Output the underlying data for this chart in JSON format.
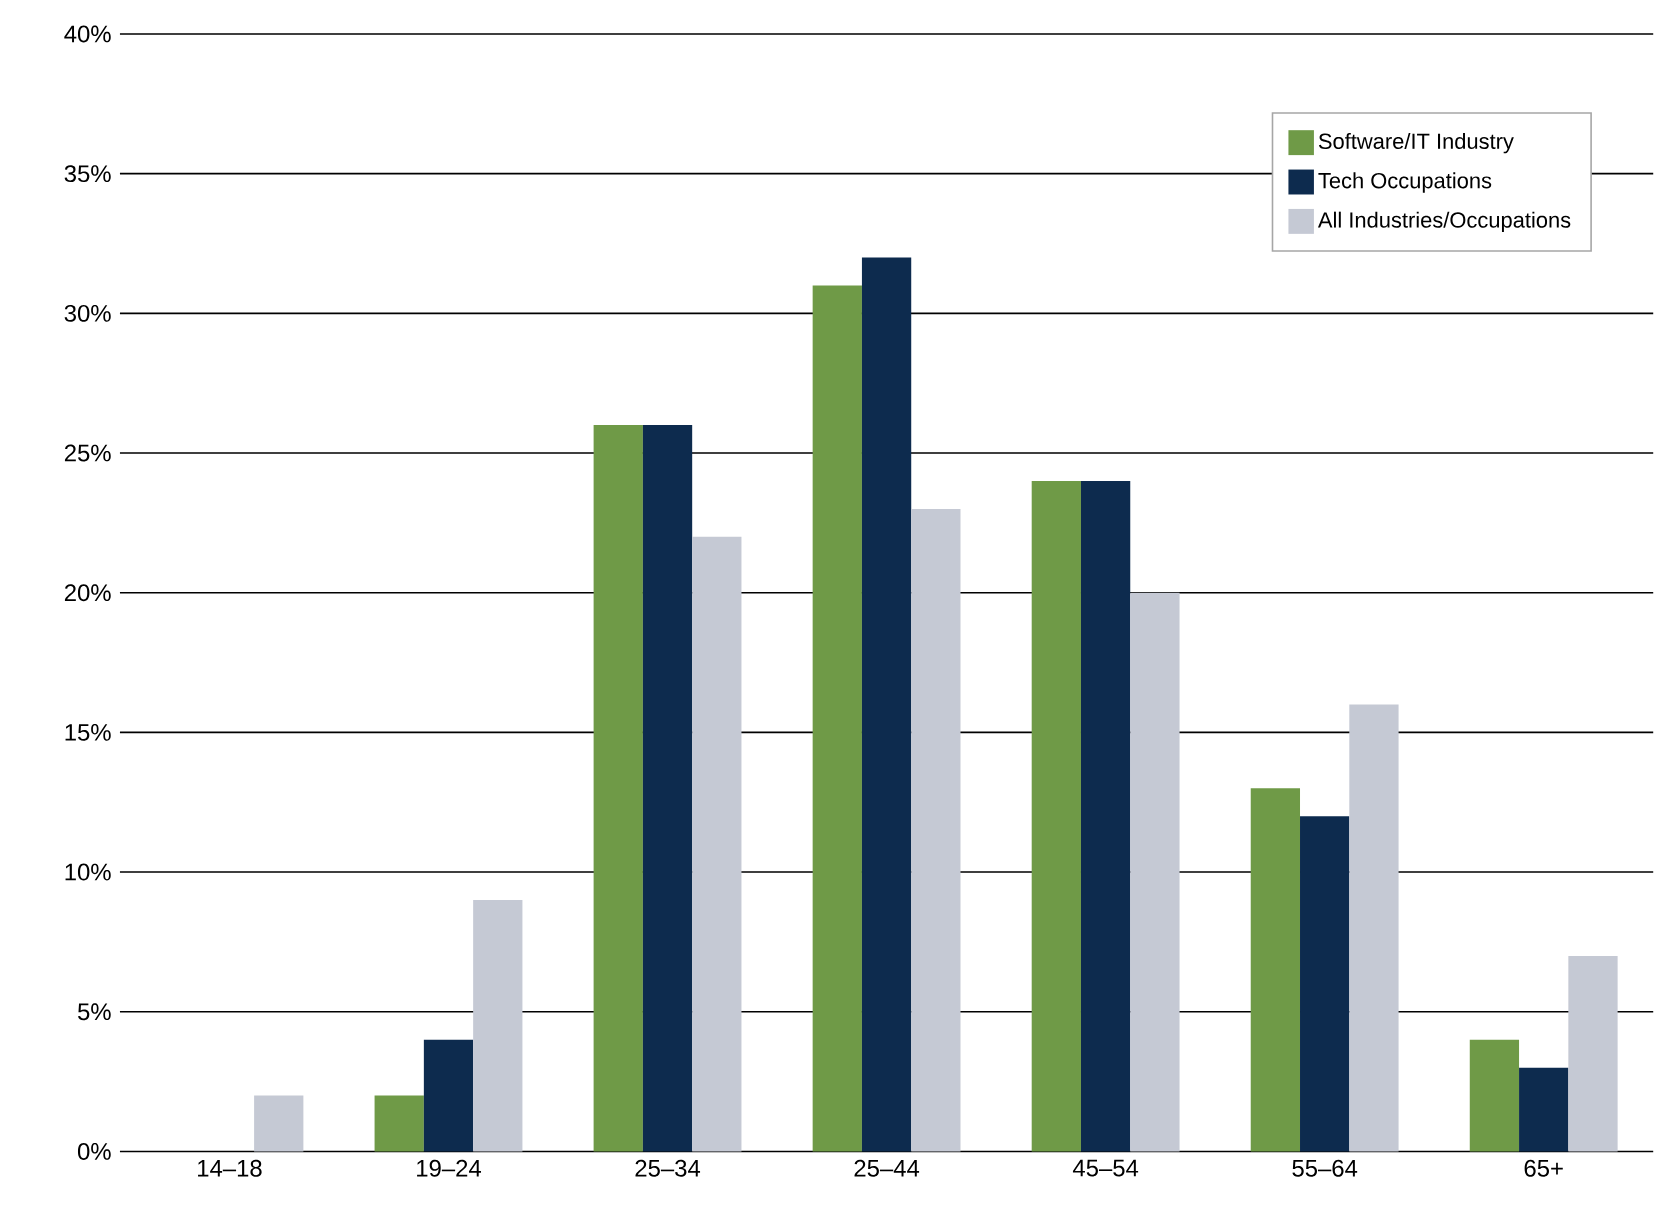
{
  "chart_data": {
    "type": "bar",
    "categories": [
      "14–18",
      "19–24",
      "25–34",
      "25–44",
      "45–54",
      "55–64",
      "65+"
    ],
    "series": [
      {
        "name": "Software/IT Industry",
        "color": "#6f9a47",
        "values": [
          0,
          2,
          26,
          31,
          24,
          13,
          4
        ]
      },
      {
        "name": "Tech Occupations",
        "color": "#0d2b4e",
        "values": [
          0,
          4,
          26,
          32,
          24,
          12,
          3
        ]
      },
      {
        "name": "All Industries/Occupations",
        "color": "#c5c9d4",
        "values": [
          2,
          9,
          22,
          23,
          20,
          16,
          7
        ]
      }
    ],
    "ylim": [
      0,
      40
    ],
    "yticks": [
      {
        "value": 0,
        "label": "0%"
      },
      {
        "value": 5,
        "label": "5%"
      },
      {
        "value": 10,
        "label": "10%"
      },
      {
        "value": 15,
        "label": "15%"
      },
      {
        "value": 20,
        "label": "20%"
      },
      {
        "value": 25,
        "label": "25%"
      },
      {
        "value": 30,
        "label": "30%"
      },
      {
        "value": 35,
        "label": "35%"
      },
      {
        "value": 40,
        "label": "40%"
      }
    ],
    "grid": "y",
    "legend": "top right"
  }
}
